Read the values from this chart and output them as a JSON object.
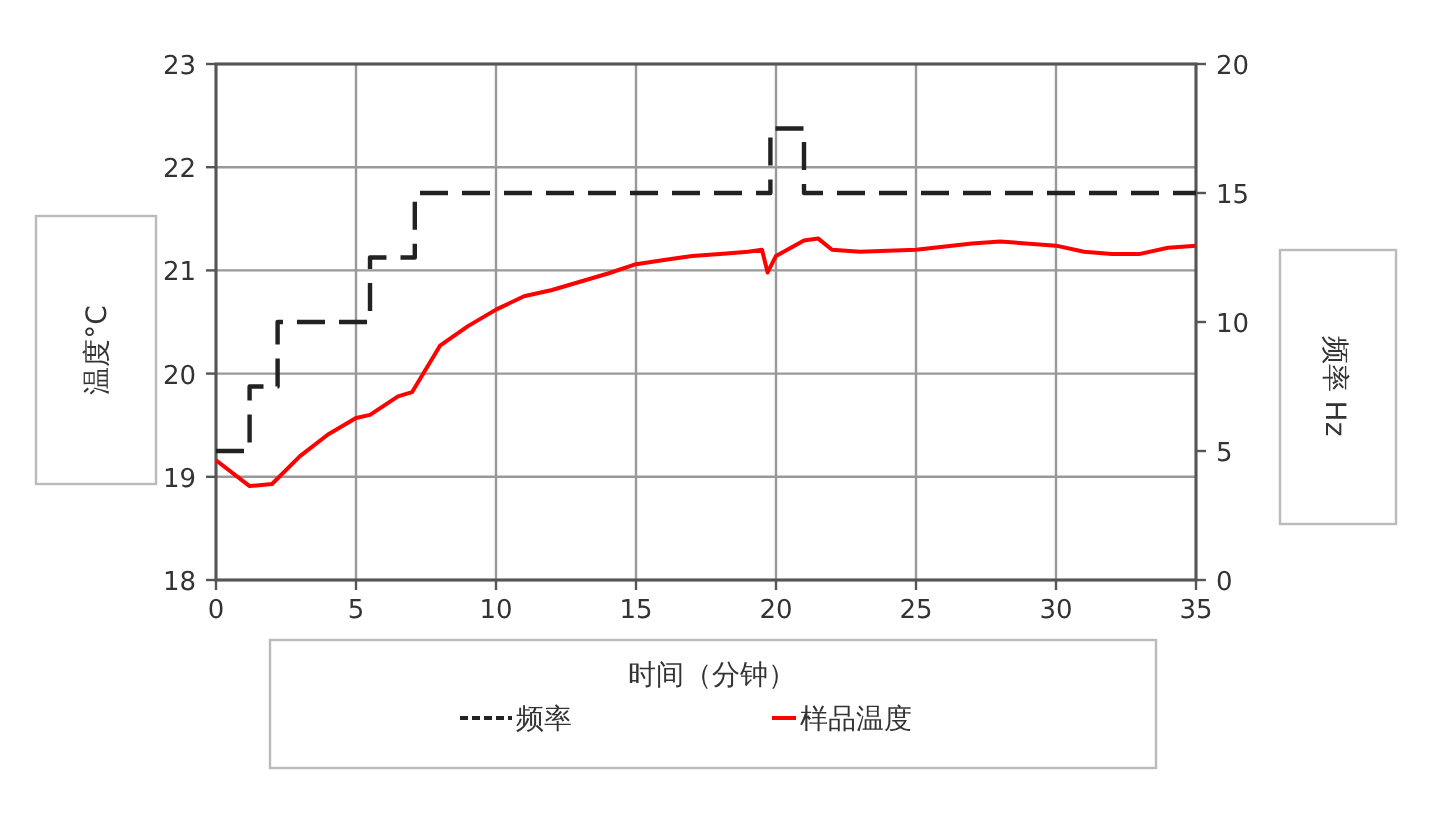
{
  "chart_data": {
    "type": "line",
    "xlabel": "时间（分钟）",
    "ylabel": "温度°C",
    "y2label": "频率 Hz",
    "xlim": [
      0,
      35
    ],
    "xticks": [
      0,
      5,
      10,
      15,
      20,
      25,
      30,
      35
    ],
    "ylim": [
      18,
      23
    ],
    "yticks": [
      18,
      19,
      20,
      21,
      22,
      23
    ],
    "y2lim": [
      0,
      20
    ],
    "y2ticks": [
      0,
      5,
      10,
      15,
      20
    ],
    "grid": true,
    "legend": "bottom",
    "series": [
      {
        "name": "频率",
        "type": "step",
        "axis": "y2",
        "color": "#222222",
        "line_style": "dashed",
        "x": [
          0,
          1.2,
          2.2,
          5.5,
          7.1,
          19.8,
          21,
          35
        ],
        "values": [
          5,
          7.5,
          10,
          12.5,
          15,
          17.5,
          15,
          15
        ]
      },
      {
        "name": "样品温度",
        "color": "#ff0000",
        "line_style": "solid",
        "x": [
          0,
          1.2,
          2,
          3,
          4,
          5,
          5.5,
          6.5,
          7,
          8,
          9,
          10,
          11,
          12,
          13,
          14,
          15,
          16,
          17,
          18,
          19,
          19.5,
          19.7,
          20,
          21,
          21.5,
          22,
          23,
          25,
          27,
          28,
          30,
          31,
          32,
          33,
          34,
          35
        ],
        "values": [
          19.16,
          18.91,
          18.93,
          19.2,
          19.41,
          19.57,
          19.6,
          19.78,
          19.82,
          20.27,
          20.46,
          20.62,
          20.75,
          20.81,
          20.89,
          20.97,
          21.06,
          21.1,
          21.14,
          21.16,
          21.18,
          21.2,
          20.98,
          21.14,
          21.29,
          21.31,
          21.2,
          21.18,
          21.2,
          21.26,
          21.28,
          21.24,
          21.18,
          21.16,
          21.16,
          21.22,
          21.24
        ]
      }
    ]
  }
}
